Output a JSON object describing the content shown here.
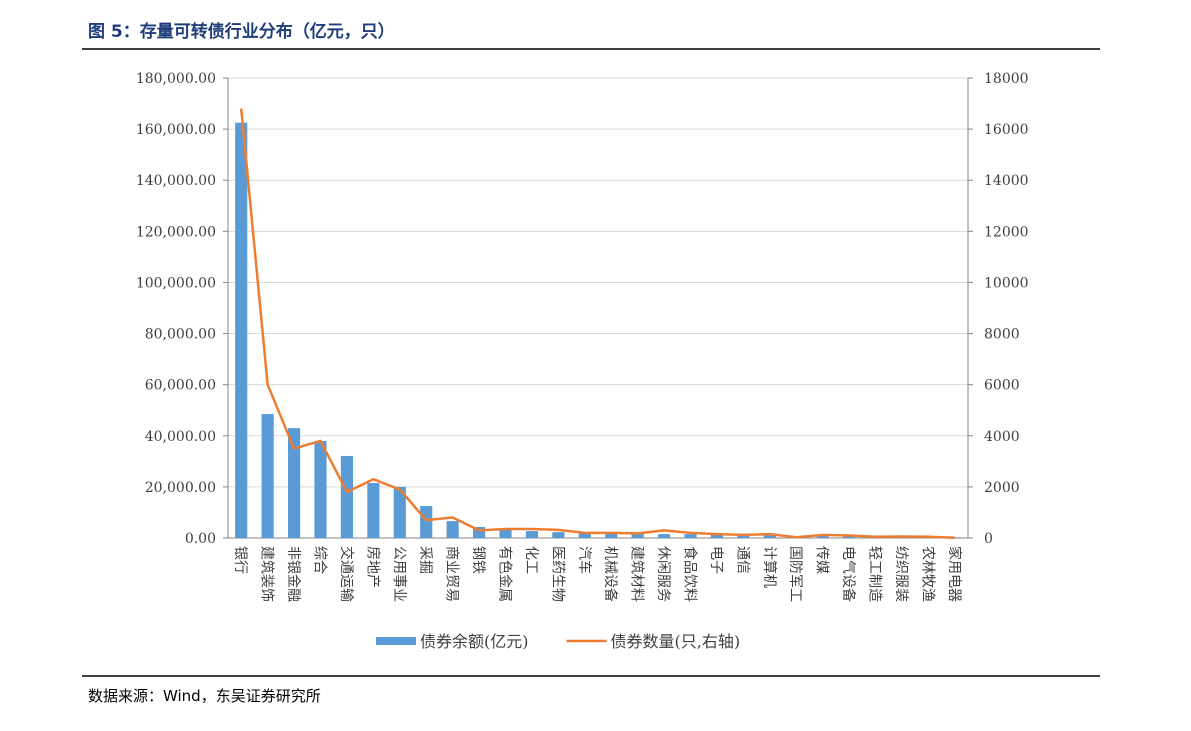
{
  "chart_data": {
    "type": "bar",
    "title": "图 5：存量可转债行业分布（亿元，只）",
    "source": "数据来源：Wind，东吴证券研究所",
    "categories": [
      "银行",
      "建筑装饰",
      "非银金融",
      "综合",
      "交通运输",
      "房地产",
      "公用事业",
      "采掘",
      "商业贸易",
      "钢铁",
      "有色金属",
      "化工",
      "医药生物",
      "汽车",
      "机械设备",
      "建筑材料",
      "休闲服务",
      "食品饮料",
      "电子",
      "通信",
      "计算机",
      "国防军工",
      "传媒",
      "电气设备",
      "轻工制造",
      "纺织服装",
      "农林牧渔",
      "家用电器"
    ],
    "series": [
      {
        "name": "债券余额(亿元)",
        "type": "bar",
        "color": "#5b9bd5",
        "values": [
          162500,
          48500,
          43000,
          38000,
          32100,
          21500,
          20000,
          12500,
          6600,
          4300,
          3500,
          2700,
          2300,
          2000,
          1800,
          1800,
          1500,
          1500,
          1300,
          1000,
          1200,
          500,
          900,
          800,
          500,
          500,
          500,
          300
        ]
      },
      {
        "name": "债券数量(只,右轴)",
        "type": "line",
        "axis": "y2",
        "color": "#ed7d31",
        "values": [
          16800,
          6000,
          3500,
          3800,
          1800,
          2300,
          1900,
          700,
          800,
          300,
          350,
          350,
          320,
          200,
          200,
          180,
          300,
          200,
          150,
          120,
          150,
          30,
          120,
          100,
          50,
          60,
          50,
          10
        ]
      }
    ],
    "ylim": [
      0,
      180000
    ],
    "yticks": [
      {
        "value": 0,
        "label": "0.00"
      },
      {
        "value": 20000,
        "label": "20,000.00"
      },
      {
        "value": 40000,
        "label": "40,000.00"
      },
      {
        "value": 60000,
        "label": "60,000.00"
      },
      {
        "value": 80000,
        "label": "80,000.00"
      },
      {
        "value": 100000,
        "label": "100,000.00"
      },
      {
        "value": 120000,
        "label": "120,000.00"
      },
      {
        "value": 140000,
        "label": "140,000.00"
      },
      {
        "value": 160000,
        "label": "160,000.00"
      },
      {
        "value": 180000,
        "label": "180,000.00"
      }
    ],
    "y2lim": [
      0,
      18000
    ],
    "y2ticks": [
      0,
      2000,
      4000,
      6000,
      8000,
      10000,
      12000,
      14000,
      16000,
      18000
    ],
    "grid": true,
    "legend": "bottom"
  }
}
